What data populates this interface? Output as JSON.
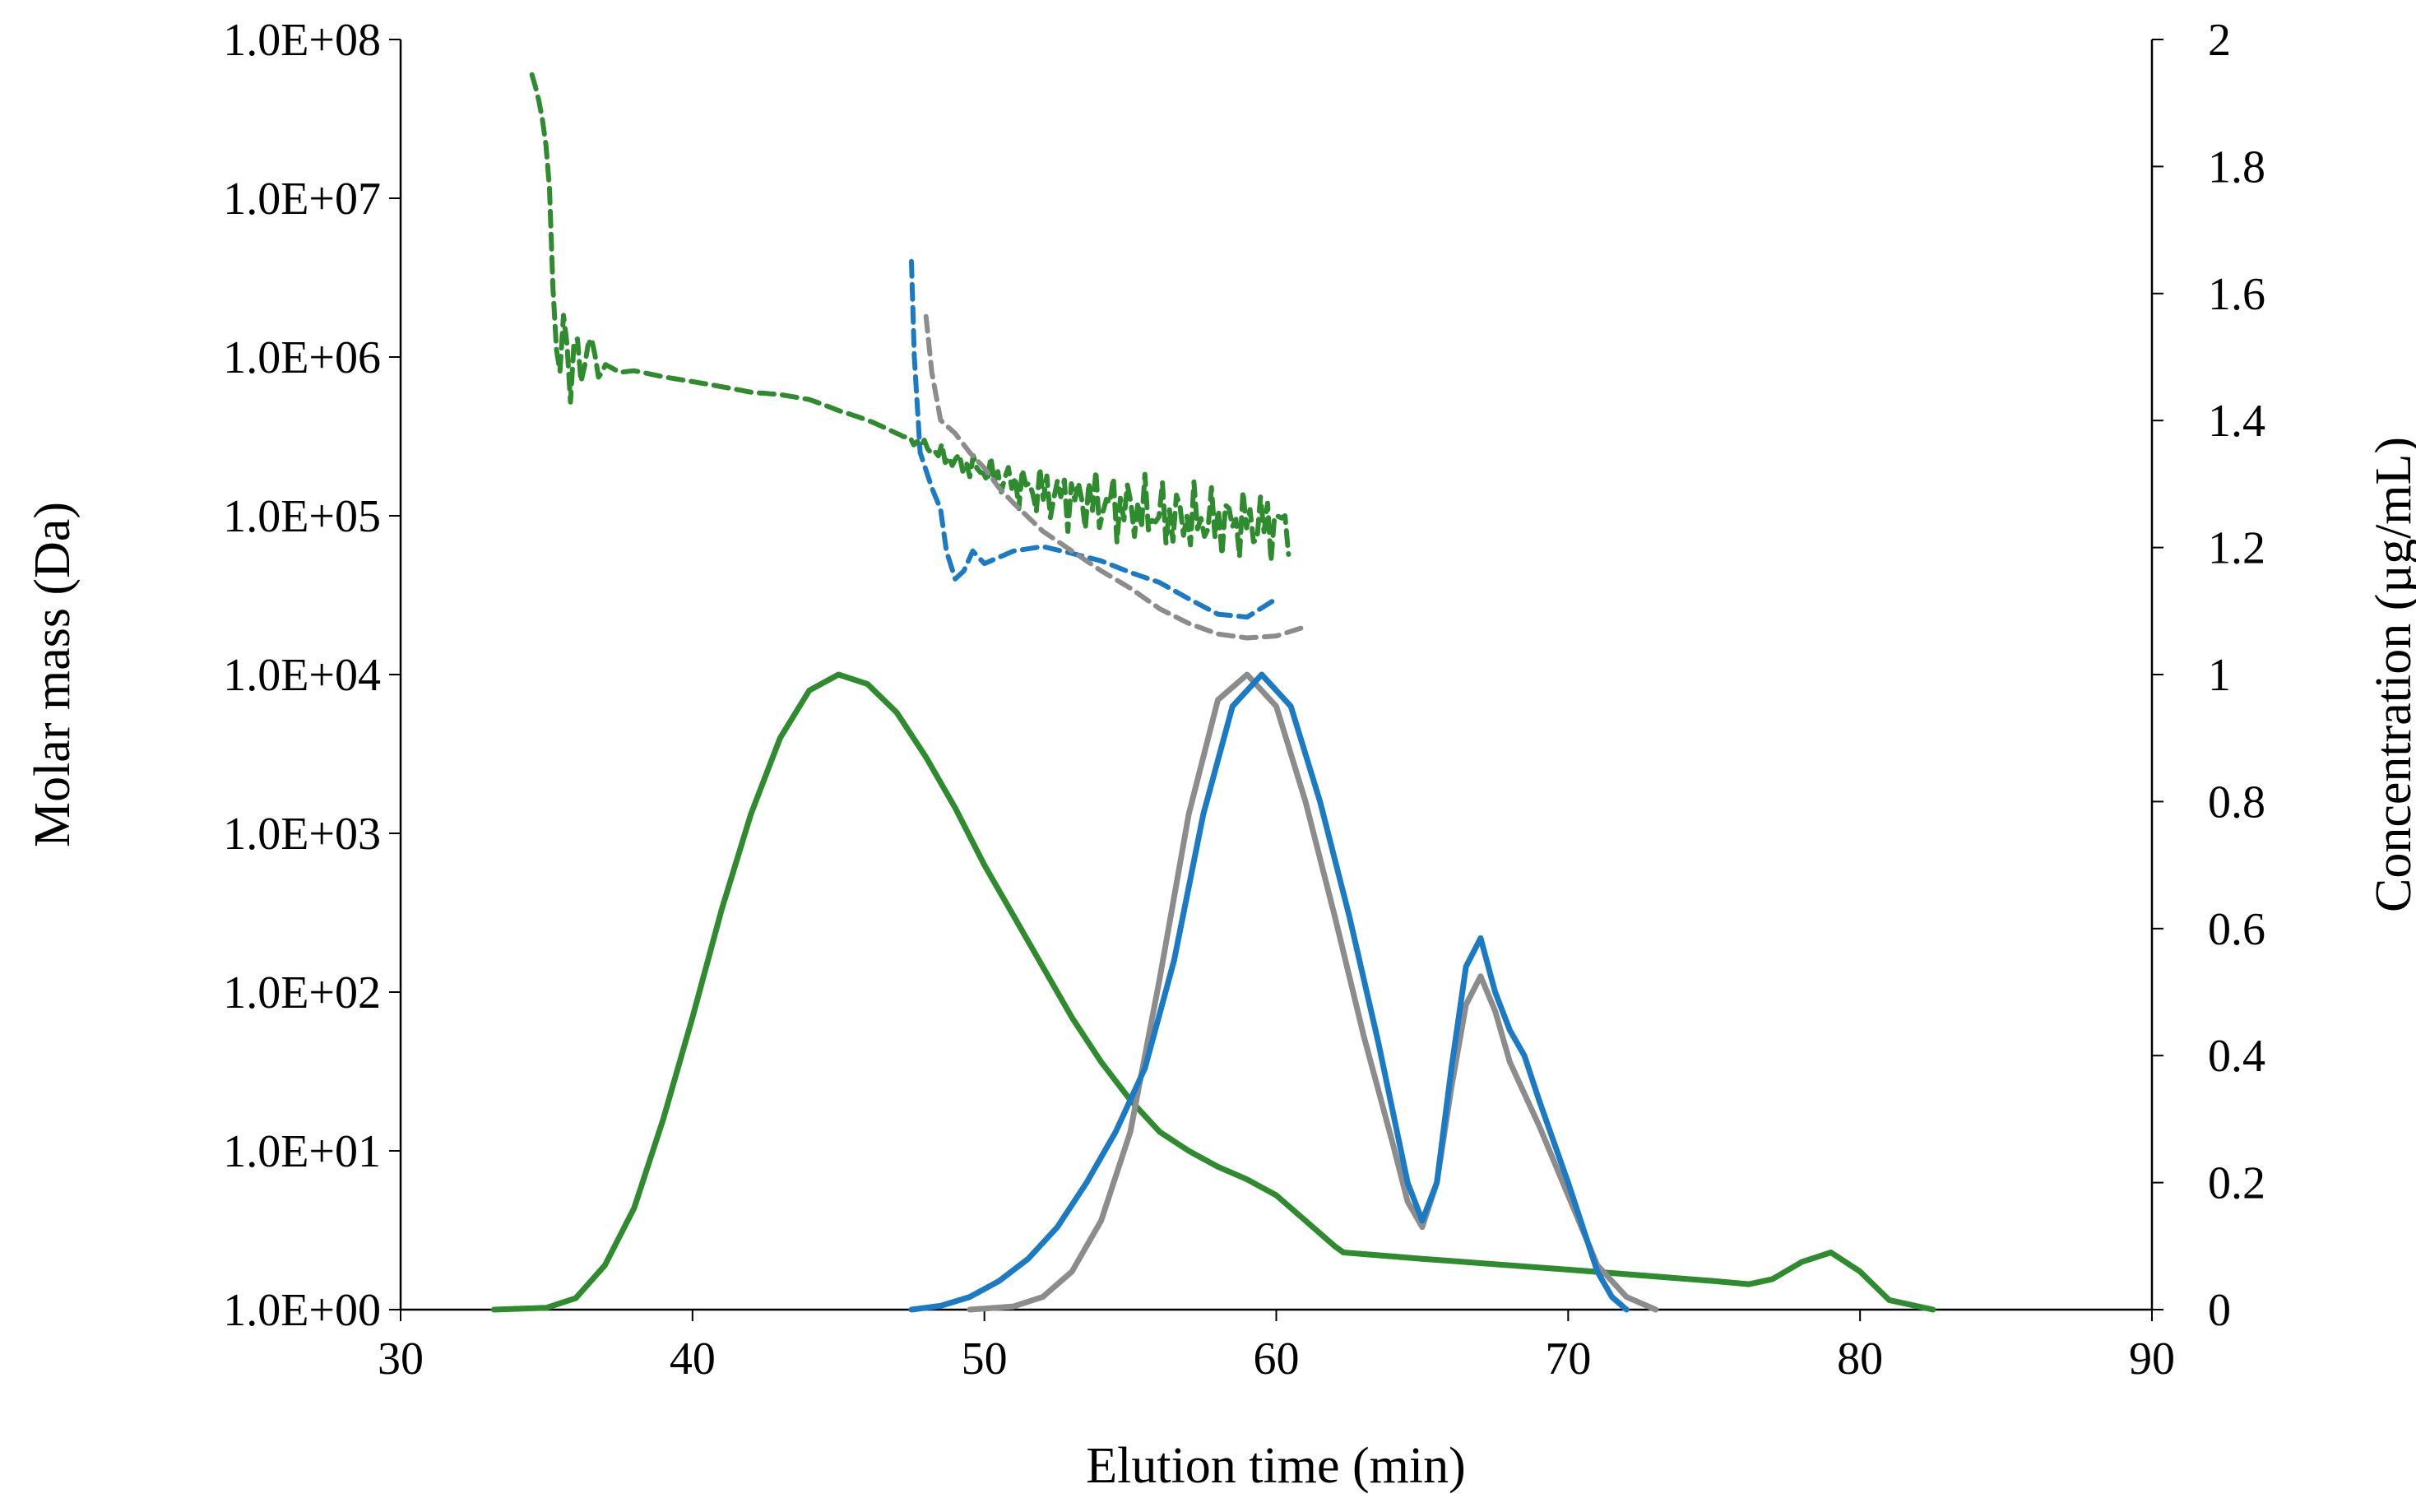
{
  "chart_data": {
    "type": "line",
    "title": "",
    "xlabel": "Elution time (min)",
    "ylabel_left": "Molar mass (Da)",
    "ylabel_right": "Concentration (µg/mL)",
    "xlim": [
      30,
      90
    ],
    "x_ticks": [
      30,
      40,
      50,
      60,
      70,
      80,
      90
    ],
    "x_tick_labels": [
      "30",
      "40",
      "50",
      "60",
      "70",
      "80",
      "90"
    ],
    "y_left_scale": "log",
    "y_left_lim": [
      1,
      100000000
    ],
    "y_left_ticks": [
      1,
      10,
      100,
      1000,
      10000,
      100000,
      1000000,
      10000000,
      100000000
    ],
    "y_left_tick_labels": [
      "1.0E+00",
      "1.0E+01",
      "1.0E+02",
      "1.0E+03",
      "1.0E+04",
      "1.0E+05",
      "1.0E+06",
      "1.0E+07",
      "1.0E+08"
    ],
    "y_right_lim": [
      0,
      2
    ],
    "y_right_ticks": [
      0,
      0.2,
      0.4,
      0.6,
      0.8,
      1,
      1.2,
      1.4,
      1.6,
      1.8,
      2
    ],
    "y_right_tick_labels": [
      "0",
      "0.2",
      "0.4",
      "0.6",
      "0.8",
      "1",
      "1.2",
      "1.4",
      "1.6",
      "1.8",
      "2"
    ],
    "grid": false,
    "legend": "none",
    "colors": {
      "green": "#2e8b2e",
      "gray": "#8c8c8c",
      "blue": "#1a7bc4"
    },
    "series": [
      {
        "name": "green-concentration",
        "axis": "right",
        "style": "solid",
        "color": "green",
        "points": [
          [
            33.2,
            0
          ],
          [
            35,
            0.003
          ],
          [
            36,
            0.018
          ],
          [
            37,
            0.07
          ],
          [
            38,
            0.16
          ],
          [
            39,
            0.3
          ],
          [
            40,
            0.46
          ],
          [
            41,
            0.63
          ],
          [
            42,
            0.78
          ],
          [
            43,
            0.9
          ],
          [
            44,
            0.975
          ],
          [
            45,
            1.0
          ],
          [
            46,
            0.985
          ],
          [
            47,
            0.94
          ],
          [
            48,
            0.87
          ],
          [
            49,
            0.79
          ],
          [
            50,
            0.7
          ],
          [
            51,
            0.62
          ],
          [
            52,
            0.54
          ],
          [
            53,
            0.46
          ],
          [
            54,
            0.39
          ],
          [
            55,
            0.33
          ],
          [
            56,
            0.28
          ],
          [
            57,
            0.25
          ],
          [
            58,
            0.225
          ],
          [
            59,
            0.205
          ],
          [
            60,
            0.18
          ],
          [
            61,
            0.14
          ],
          [
            62,
            0.1
          ],
          [
            62.3,
            0.09
          ],
          [
            65,
            0.08
          ],
          [
            70,
            0.063
          ],
          [
            75,
            0.045
          ],
          [
            76.2,
            0.04
          ],
          [
            77,
            0.048
          ],
          [
            78,
            0.075
          ],
          [
            79,
            0.09
          ],
          [
            80,
            0.06
          ],
          [
            81,
            0.015
          ],
          [
            82.5,
            0
          ]
        ]
      },
      {
        "name": "gray-concentration",
        "axis": "right",
        "style": "solid",
        "color": "gray",
        "points": [
          [
            49.5,
            0
          ],
          [
            51,
            0.005
          ],
          [
            52,
            0.02
          ],
          [
            53,
            0.06
          ],
          [
            54,
            0.14
          ],
          [
            55,
            0.28
          ],
          [
            56,
            0.52
          ],
          [
            57,
            0.78
          ],
          [
            58,
            0.96
          ],
          [
            59,
            1.0
          ],
          [
            60,
            0.95
          ],
          [
            61,
            0.8
          ],
          [
            62,
            0.62
          ],
          [
            63,
            0.43
          ],
          [
            64,
            0.26
          ],
          [
            64.5,
            0.17
          ],
          [
            65,
            0.13
          ],
          [
            65.5,
            0.2
          ],
          [
            66,
            0.35
          ],
          [
            66.5,
            0.48
          ],
          [
            67,
            0.525
          ],
          [
            67.5,
            0.47
          ],
          [
            68,
            0.39
          ],
          [
            68.5,
            0.34
          ],
          [
            69,
            0.29
          ],
          [
            70,
            0.18
          ],
          [
            71,
            0.07
          ],
          [
            72,
            0.02
          ],
          [
            73,
            0
          ]
        ]
      },
      {
        "name": "blue-concentration",
        "axis": "right",
        "style": "solid",
        "color": "blue",
        "points": [
          [
            47.5,
            0
          ],
          [
            48.5,
            0.006
          ],
          [
            49.5,
            0.02
          ],
          [
            50.5,
            0.045
          ],
          [
            51.5,
            0.08
          ],
          [
            52.5,
            0.13
          ],
          [
            53.5,
            0.2
          ],
          [
            54.5,
            0.28
          ],
          [
            55.5,
            0.38
          ],
          [
            56.5,
            0.55
          ],
          [
            57.5,
            0.78
          ],
          [
            58.5,
            0.95
          ],
          [
            59.5,
            1.0
          ],
          [
            60.5,
            0.95
          ],
          [
            61.5,
            0.8
          ],
          [
            62.5,
            0.62
          ],
          [
            63.5,
            0.42
          ],
          [
            64.5,
            0.2
          ],
          [
            65,
            0.14
          ],
          [
            65.5,
            0.2
          ],
          [
            66,
            0.38
          ],
          [
            66.5,
            0.54
          ],
          [
            67,
            0.585
          ],
          [
            67.5,
            0.5
          ],
          [
            68,
            0.44
          ],
          [
            68.5,
            0.4
          ],
          [
            69,
            0.33
          ],
          [
            70,
            0.2
          ],
          [
            71,
            0.06
          ],
          [
            71.5,
            0.02
          ],
          [
            72,
            0
          ]
        ]
      },
      {
        "name": "green-molar-mass",
        "axis": "left",
        "style": "dashed",
        "color": "green",
        "points": [
          [
            34.5,
            60000000
          ],
          [
            35.0,
            20000000
          ],
          [
            35.2,
            3000000
          ],
          [
            35.4,
            300000
          ],
          [
            35.6,
            2000000
          ],
          [
            35.8,
            400000
          ],
          [
            36.0,
            1600000
          ],
          [
            36.2,
            600000
          ],
          [
            36.5,
            1400000
          ],
          [
            36.8,
            700000
          ],
          [
            37.0,
            900000
          ],
          [
            37.5,
            800000
          ],
          [
            38,
            820000
          ],
          [
            39,
            750000
          ],
          [
            40,
            700000
          ],
          [
            41,
            650000
          ],
          [
            42,
            600000
          ],
          [
            43,
            580000
          ],
          [
            44,
            540000
          ],
          [
            45,
            460000
          ],
          [
            46,
            400000
          ],
          [
            47,
            330000
          ],
          [
            48,
            270000
          ],
          [
            49,
            220000
          ],
          [
            50,
            190000
          ],
          [
            51,
            160000
          ],
          [
            52,
            140000
          ],
          [
            53,
            130000
          ],
          [
            54,
            120000
          ],
          [
            55,
            110000
          ],
          [
            56,
            100000
          ],
          [
            57,
            95000
          ],
          [
            58,
            92000
          ],
          [
            59,
            90000
          ],
          [
            60,
            88000
          ],
          [
            60.5,
            90000
          ]
        ],
        "noise": [
          0,
          0,
          0,
          0,
          0,
          0,
          0,
          0,
          0,
          0,
          0,
          0,
          0,
          0,
          0,
          0,
          0,
          0,
          0,
          0,
          0,
          0,
          0.05,
          0.08,
          0.1,
          0.15,
          0.2,
          0.22,
          0.25,
          0.25,
          0.25,
          0.25,
          0.25,
          0.25,
          0.25,
          0.2
        ]
      },
      {
        "name": "blue-molar-mass",
        "axis": "left",
        "style": "dashed",
        "color": "blue",
        "points": [
          [
            47.5,
            4000000
          ],
          [
            47.6,
            1000000
          ],
          [
            47.8,
            250000
          ],
          [
            48.2,
            150000
          ],
          [
            48.5,
            110000
          ],
          [
            48.7,
            60000
          ],
          [
            49.0,
            40000
          ],
          [
            49.3,
            45000
          ],
          [
            49.6,
            60000
          ],
          [
            50,
            50000
          ],
          [
            51,
            60000
          ],
          [
            52,
            64000
          ],
          [
            53,
            58000
          ],
          [
            54,
            52000
          ],
          [
            55,
            44000
          ],
          [
            56,
            38000
          ],
          [
            57,
            30000
          ],
          [
            58,
            24000
          ],
          [
            59,
            23000
          ],
          [
            60,
            30000
          ]
        ]
      },
      {
        "name": "gray-molar-mass",
        "axis": "left",
        "style": "dashed",
        "color": "gray",
        "points": [
          [
            48.0,
            1800000
          ],
          [
            48.2,
            800000
          ],
          [
            48.5,
            400000
          ],
          [
            49,
            330000
          ],
          [
            49.5,
            250000
          ],
          [
            50,
            200000
          ],
          [
            50.5,
            150000
          ],
          [
            51,
            120000
          ],
          [
            52,
            80000
          ],
          [
            53,
            60000
          ],
          [
            54,
            45000
          ],
          [
            55,
            35000
          ],
          [
            56,
            26000
          ],
          [
            57,
            21000
          ],
          [
            58,
            18000
          ],
          [
            59,
            17000
          ],
          [
            60,
            17500
          ],
          [
            61,
            20000
          ]
        ]
      }
    ]
  }
}
